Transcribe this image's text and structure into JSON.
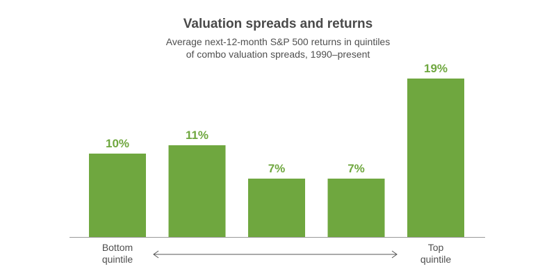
{
  "title": "Valuation spreads and returns",
  "subtitle": [
    "Average next-12-month S&P 500 returns in quintiles",
    "of combo valuation spreads, 1990–present"
  ],
  "axis_end_labels": {
    "left": [
      "Bottom",
      "quintile"
    ],
    "right": [
      "Top",
      "quintile"
    ]
  },
  "colors": {
    "bar": "#6fa73f",
    "label": "#6fa73f",
    "axis": "#999999",
    "arrow": "#555555"
  },
  "chart_data": {
    "type": "bar",
    "categories": [
      "Bottom quintile",
      "",
      "",
      "",
      "Top quintile"
    ],
    "values": [
      10,
      11,
      7,
      7,
      19
    ],
    "data_labels": [
      "10%",
      "11%",
      "7%",
      "7%",
      "19%"
    ],
    "title": "Valuation spreads and returns",
    "ylim": [
      0,
      20
    ],
    "grid": false,
    "legend": "none"
  }
}
